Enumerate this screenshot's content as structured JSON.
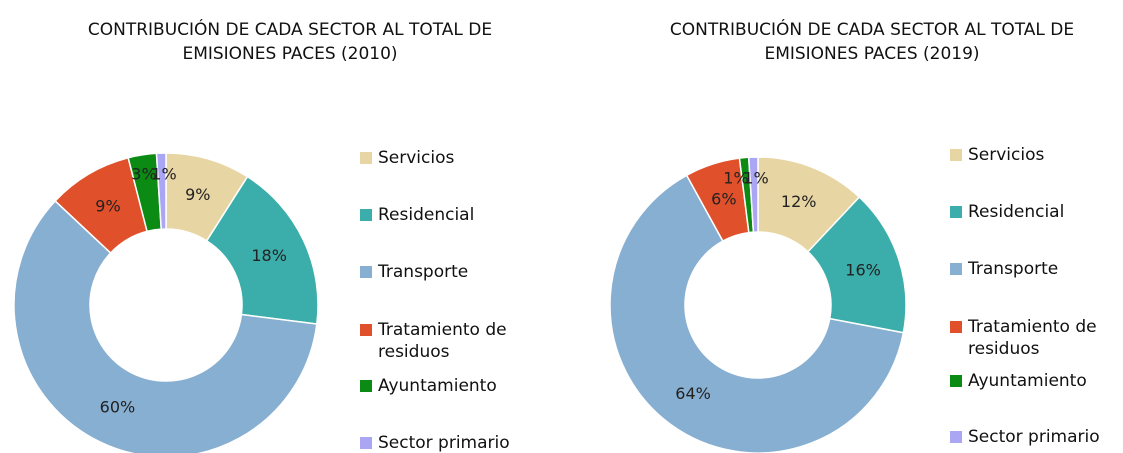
{
  "chart_data": [
    {
      "type": "donut",
      "title": "CONTRIBUCIÓN DE CADA SECTOR AL TOTAL DE EMISIONES PACES (2010)",
      "categories": [
        "Servicios",
        "Residencial",
        "Transporte",
        "Tratamiento de residuos",
        "Ayuntamiento",
        "Sector primario"
      ],
      "values": [
        9,
        18,
        60,
        9,
        3,
        1
      ],
      "value_labels": [
        "9%",
        "18%",
        "60%",
        "9%",
        "3%",
        "1%"
      ],
      "colors": [
        "#e8d5a4",
        "#3badaa",
        "#87afd1",
        "#e0502b",
        "#0b8a14",
        "#aaa6f3"
      ]
    },
    {
      "type": "donut",
      "title": "CONTRIBUCIÓN DE CADA SECTOR AL TOTAL DE EMISIONES PACES (2019)",
      "categories": [
        "Servicios",
        "Residencial",
        "Transporte",
        "Tratamiento de residuos",
        "Ayuntamiento",
        "Sector primario"
      ],
      "values": [
        12,
        16,
        64,
        6,
        1,
        1
      ],
      "value_labels": [
        "12%",
        "16%",
        "64%",
        "6%",
        "1%",
        "1%"
      ],
      "colors": [
        "#e8d5a4",
        "#3badaa",
        "#87afd1",
        "#e0502b",
        "#0b8a14",
        "#aaa6f3"
      ]
    }
  ]
}
